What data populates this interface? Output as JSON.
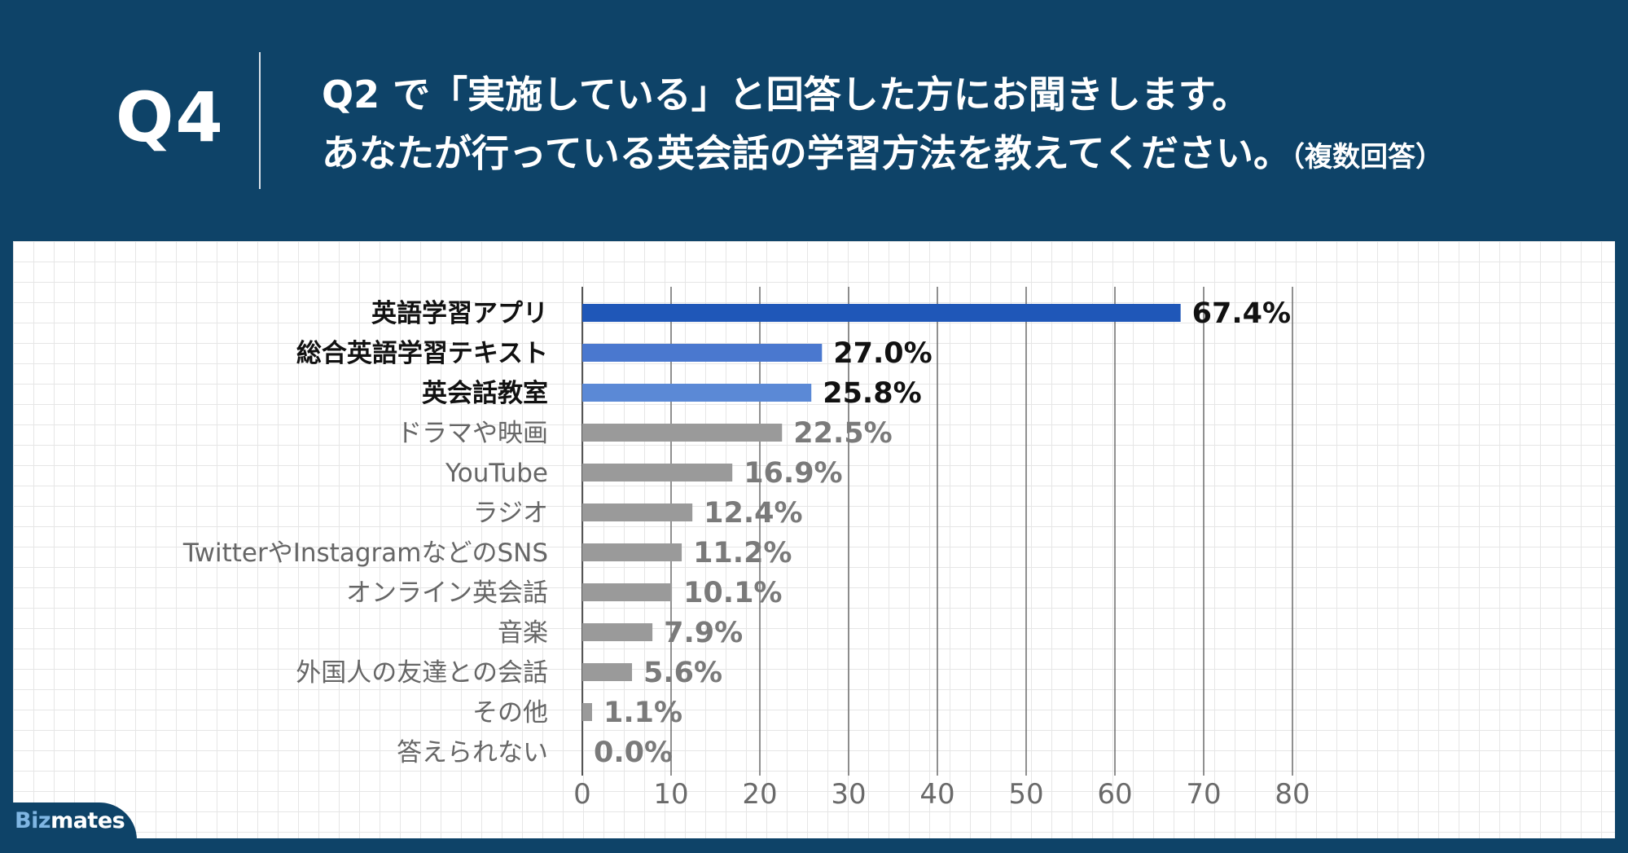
{
  "header": {
    "qnum": "Q4",
    "line1": "Q2 で「実施している」と回答した方にお聞きします。",
    "line2": "あなたが行っている英会話の学習方法を教えてください。",
    "note": "（複数回答）"
  },
  "logo": {
    "part1": "Biz",
    "part2": "mates"
  },
  "colors": {
    "header_bg": "#0e4368",
    "bar_top1": "#1f57b8",
    "bar_top2": "#4a78cf",
    "bar_top3": "#5b89d6",
    "bar_other": "#9a9a9a",
    "label_highlight": "#111111",
    "label_other": "#7a7a7a"
  },
  "chart_data": {
    "type": "bar",
    "orientation": "horizontal",
    "categories": [
      "英語学習アプリ",
      "総合英語学習テキスト",
      "英会話教室",
      "ドラマや映画",
      "YouTube",
      "ラジオ",
      "TwitterやInstagramなどのSNS",
      "オンライン英会話",
      "音楽",
      "外国人の友達との会話",
      "その他",
      "答えられない"
    ],
    "values": [
      67.4,
      27.0,
      25.8,
      22.5,
      16.9,
      12.4,
      11.2,
      10.1,
      7.9,
      5.6,
      1.1,
      0.0
    ],
    "value_labels": [
      "67.4%",
      "27.0%",
      "25.8%",
      "22.5%",
      "16.9%",
      "12.4%",
      "11.2%",
      "10.1%",
      "7.9%",
      "5.6%",
      "1.1%",
      "0.0%"
    ],
    "xlim": [
      0,
      80
    ],
    "xticks": [
      "0",
      "10",
      "20",
      "30",
      "40",
      "50",
      "60",
      "70",
      "80"
    ],
    "grid": true,
    "highlight_count": 3
  }
}
